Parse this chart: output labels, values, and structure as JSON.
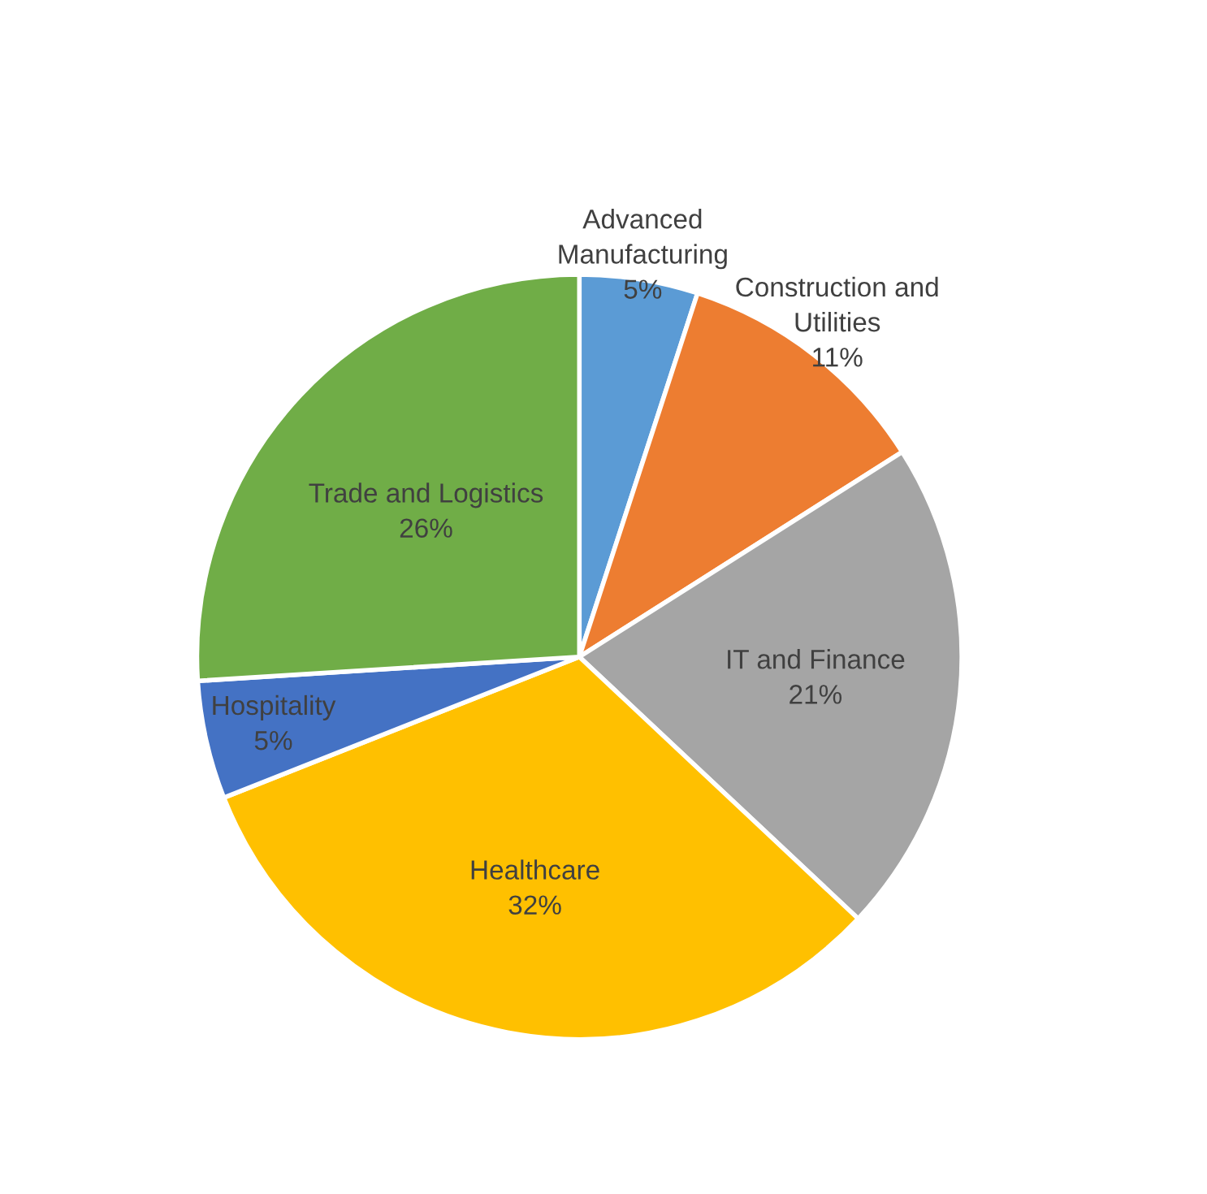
{
  "chart_data": {
    "type": "pie",
    "categories": [
      "Advanced\nManufacturing",
      "Construction and\nUtilities",
      "IT and Finance",
      "Healthcare",
      "Hospitality",
      "Trade and Logistics"
    ],
    "values": [
      5,
      11,
      21,
      32,
      5,
      26
    ],
    "colors": [
      "#5b9bd5",
      "#ed7d31",
      "#a5a5a5",
      "#ffc000",
      "#4472c4",
      "#70ad47"
    ],
    "value_labels": [
      "5%",
      "11%",
      "21%",
      "32%",
      "5%",
      "26%"
    ]
  }
}
